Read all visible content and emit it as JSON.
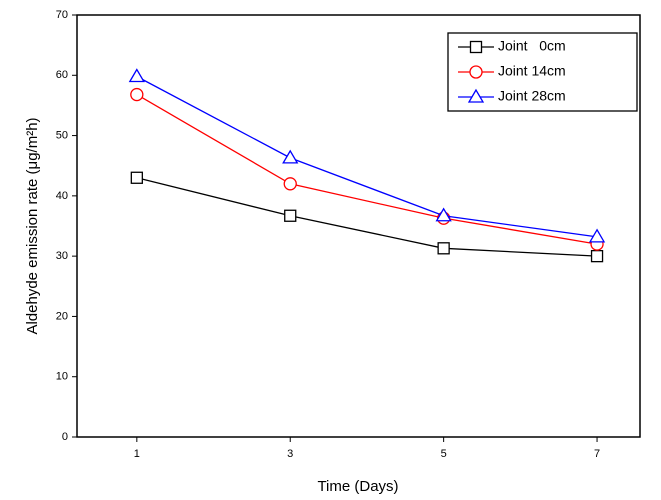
{
  "chart_data": {
    "type": "line",
    "xlabel": "Time (Days)",
    "ylabel": "Aldehyde emission rate (μg/m²h)",
    "x": [
      1,
      3,
      5,
      7
    ],
    "xlim": [
      0.22,
      7.56
    ],
    "xticks": [
      1,
      3,
      5,
      7
    ],
    "ylim": [
      0,
      70
    ],
    "yticks": [
      0,
      10,
      20,
      30,
      40,
      50,
      60,
      70
    ],
    "legend": "top-right",
    "series": [
      {
        "name": "Joint   0cm",
        "color": "#000000",
        "marker": "square",
        "values": [
          43,
          36.7,
          31.3,
          30
        ]
      },
      {
        "name": "Joint 14cm",
        "color": "#ff0000",
        "marker": "circle",
        "values": [
          56.8,
          42,
          36.3,
          32
        ]
      },
      {
        "name": "Joint 28cm",
        "color": "#0000ff",
        "marker": "triangle",
        "values": [
          59.8,
          46.3,
          36.7,
          33.2
        ]
      }
    ]
  }
}
